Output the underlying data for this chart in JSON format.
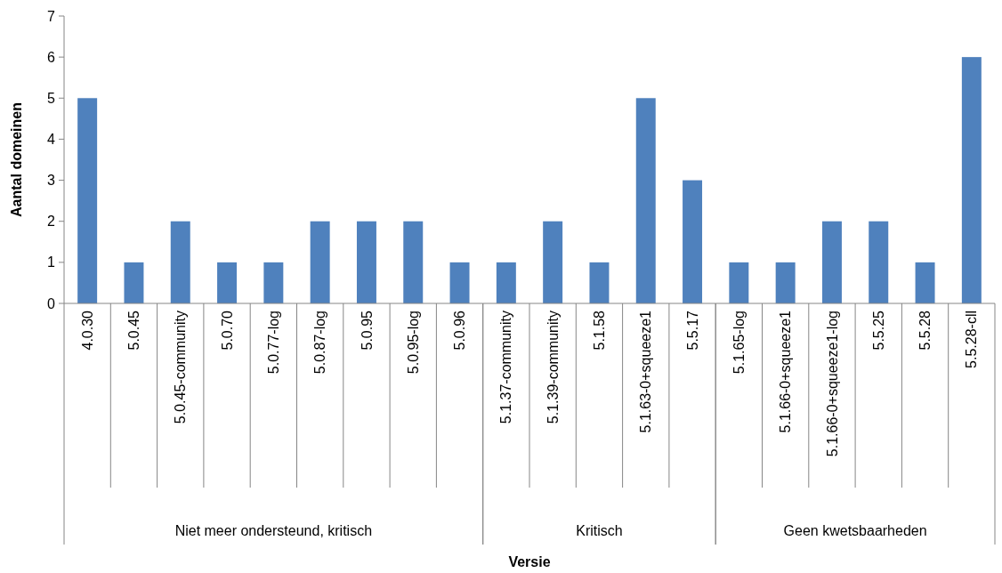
{
  "chart_data": [
    {
      "type": "bar",
      "xlabel": "Niet meer ondersteund, kritisch",
      "ylabel": "Aantal domeinen",
      "categories": [
        "4.0.30",
        "5.0.45",
        "5.0.45-community",
        "5.0.70",
        "5.0.77-log",
        "5.0.87-log",
        "5.0.95",
        "5.0.95-log",
        "5.0.96"
      ],
      "values": [
        5,
        1,
        2,
        1,
        1,
        2,
        2,
        2,
        1
      ],
      "color": "#4f81bd",
      "ylim": [
        0,
        7
      ],
      "yticks": [
        0,
        1,
        2,
        3,
        4,
        5,
        6,
        7
      ],
      "legend": false
    },
    {
      "type": "bar",
      "xlabel": "Kritisch",
      "categories": [
        "5.1.37-community",
        "5.1.39-community",
        "5.1.58",
        "5.1.63-0+squeeze1",
        "5.5.17"
      ],
      "values": [
        1,
        2,
        1,
        5,
        3
      ],
      "color": "#4f81bd",
      "ylim": [
        0,
        7
      ],
      "tick_labels": "x",
      "legend": false,
      "annotations": [
        "Versie"
      ]
    },
    {
      "type": "bar",
      "xlabel": "Geen kwetsbaarheden",
      "categories": [
        "5.1.65-log",
        "5.1.66-0+squeeze1",
        "5.1.66-0+squeeze1-log",
        "5.5.25",
        "5.5.28",
        "5.5.28-cll"
      ],
      "values": [
        1,
        1,
        2,
        2,
        1,
        6
      ],
      "color": "#4f81bd",
      "ylim": [
        0,
        7
      ],
      "tick_labels": "x",
      "legend": false
    }
  ]
}
